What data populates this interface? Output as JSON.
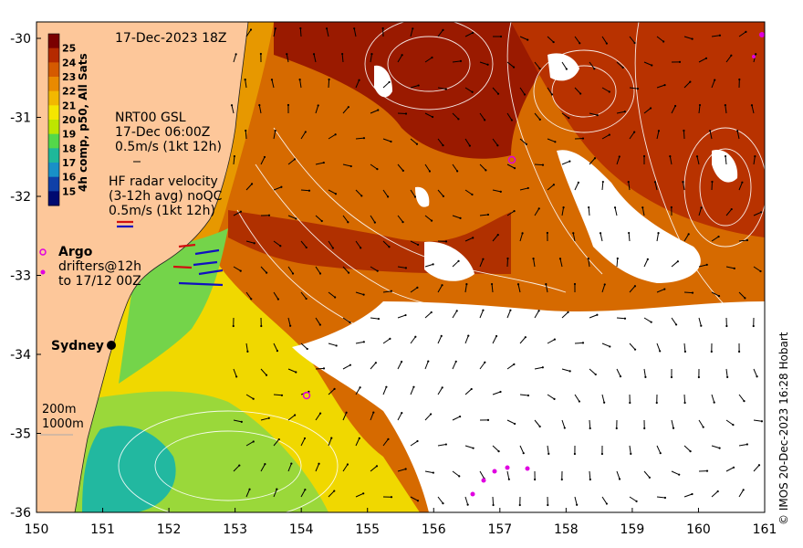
{
  "map": {
    "timestamp": "17-Dec-2023 18Z",
    "colorbar": {
      "title": "4h comp, p50, All Sats",
      "levels": [
        "25",
        "24",
        "23",
        "22",
        "21",
        "20",
        "19",
        "18",
        "17",
        "16",
        "15"
      ],
      "colors": [
        "#7a0000",
        "#b52a00",
        "#d55a00",
        "#e98a00",
        "#f2b800",
        "#f5e600",
        "#bde600",
        "#54d84a",
        "#1fb89a",
        "#1990c8",
        "#1040a8",
        "#000a70"
      ]
    },
    "legend": {
      "gsl_line1": "NRT00 GSL",
      "gsl_line2": "17-Dec 06:00Z",
      "gsl_line3": "0.5m/s (1kt 12h)",
      "hf_line1": "HF radar velocity",
      "hf_line2": "(3-12h avg) noQC",
      "hf_line3": "0.5m/s (1kt 12h)",
      "argo": "Argo",
      "drifters_line1": "drifters@12h",
      "drifters_line2": "to 17/12 00Z"
    },
    "places": {
      "sydney": "Sydney"
    },
    "isobaths": {
      "depth1": "200m",
      "depth2": "1000m"
    },
    "x_ticks": [
      "150",
      "151",
      "152",
      "153",
      "154",
      "155",
      "156",
      "157",
      "158",
      "159",
      "160",
      "161"
    ],
    "y_ticks": [
      "-30",
      "-31",
      "-32",
      "-33",
      "-34",
      "-35",
      "-36"
    ],
    "credit": "© IMOS 20-Dec-2023 16:28 Hobart"
  },
  "colors": {
    "land": "#fdc79a",
    "cloud": "#ffffff",
    "contour": "#ffffff",
    "argo": "#e000e0",
    "drifter": "#e000e0",
    "hf_red": "#d01010",
    "hf_blue": "#1010c0"
  }
}
